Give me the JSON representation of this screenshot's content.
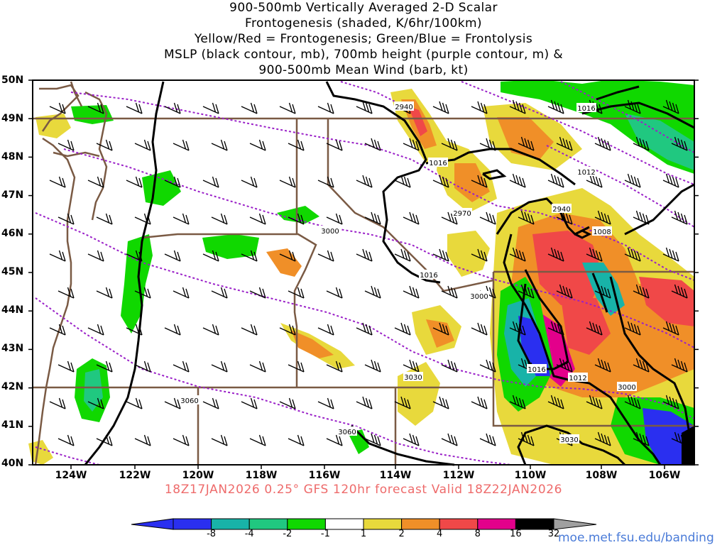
{
  "title_lines": [
    "900-500mb Vertically Averaged 2-D Scalar",
    "Frontogenesis (shaded, K/6hr/100km)",
    "Yellow/Red = Frontogenesis;  Green/Blue = Frontolysis",
    "MSLP (black contour, mb), 700mb height (purple contour, m) &",
    "900-500mb Mean Wind (barb, kt)"
  ],
  "lat_labels": [
    "50N",
    "49N",
    "48N",
    "47N",
    "46N",
    "45N",
    "44N",
    "43N",
    "42N",
    "41N",
    "40N"
  ],
  "lon_labels": [
    "124W",
    "122W",
    "120W",
    "118W",
    "116W",
    "114W",
    "112W",
    "110W",
    "108W",
    "106W"
  ],
  "contour_labels": {
    "mslp": [
      "1016",
      "1016",
      "1012",
      "1016",
      "1016",
      "1012",
      "1008"
    ],
    "height": [
      "2940",
      "2970",
      "3000",
      "2940",
      "3000",
      "3030",
      "3000",
      "3060",
      "3060",
      "3030"
    ]
  },
  "footer": "18Z17JAN2026 0.25° GFS 120hr forecast Valid 18Z22JAN2026",
  "color_scale": {
    "labels": [
      "-8",
      "-4",
      "-2",
      "-1",
      "1",
      "2",
      "4",
      "8",
      "16",
      "32"
    ],
    "colors": [
      "#2a2ff0",
      "#18b3a8",
      "#20c880",
      "#10d800",
      "#ffffff",
      "#e8d93c",
      "#f08f28",
      "#f04848",
      "#e3008b",
      "#000000"
    ]
  },
  "credit": "moe.met.fsu.edu/banding",
  "colors": {
    "mslp": "#000000",
    "height": "#9a20c8",
    "borders": "#7a5a44"
  }
}
